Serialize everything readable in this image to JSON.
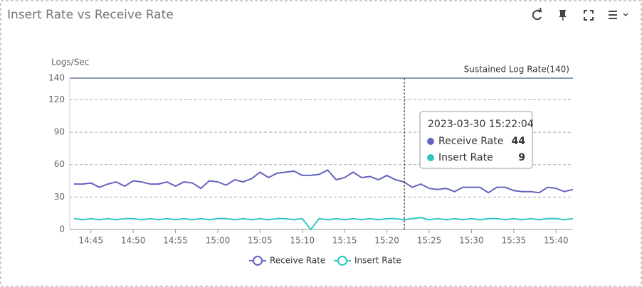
{
  "chart_data": {
    "type": "line",
    "title": "Insert Rate vs Receive Rate",
    "y_label": "Logs/Sec",
    "annotation": {
      "text": "Sustained Log Rate(140)",
      "value": 140
    },
    "x": [
      "14:43",
      "14:44",
      "14:45",
      "14:46",
      "14:47",
      "14:48",
      "14:49",
      "14:50",
      "14:51",
      "14:52",
      "14:53",
      "14:54",
      "14:55",
      "14:56",
      "14:57",
      "14:58",
      "14:59",
      "15:00",
      "15:01",
      "15:02",
      "15:03",
      "15:04",
      "15:05",
      "15:06",
      "15:07",
      "15:08",
      "15:09",
      "15:10",
      "15:11",
      "15:12",
      "15:13",
      "15:14",
      "15:15",
      "15:16",
      "15:17",
      "15:18",
      "15:19",
      "15:20",
      "15:21",
      "15:22",
      "15:23",
      "15:24",
      "15:25",
      "15:26",
      "15:27",
      "15:28",
      "15:29",
      "15:30",
      "15:31",
      "15:32",
      "15:33",
      "15:34",
      "15:35",
      "15:36",
      "15:37",
      "15:38",
      "15:39",
      "15:40",
      "15:41",
      "15:42"
    ],
    "series": [
      {
        "name": "Receive Rate",
        "color": "#6464bf",
        "values": [
          42,
          42,
          43,
          39,
          42,
          44,
          40,
          45,
          44,
          42,
          42,
          44,
          40,
          44,
          43,
          38,
          45,
          44,
          41,
          46,
          44,
          47,
          53,
          48,
          52,
          53,
          54,
          50,
          50,
          51,
          55,
          46,
          48,
          53,
          48,
          49,
          46,
          50,
          46,
          44,
          39,
          42,
          38,
          37,
          38,
          35,
          39,
          39,
          39,
          34,
          39,
          39,
          36,
          35,
          35,
          34,
          39,
          38,
          35,
          37
        ]
      },
      {
        "name": "Insert Rate",
        "color": "#2ec7c0",
        "values": [
          10,
          9,
          10,
          9,
          10,
          9,
          10,
          10,
          9,
          10,
          9,
          10,
          9,
          10,
          9,
          10,
          9,
          10,
          10,
          9,
          10,
          9,
          10,
          9,
          10,
          10,
          9,
          10,
          0,
          10,
          9,
          10,
          9,
          10,
          9,
          10,
          9,
          10,
          10,
          9,
          10,
          11,
          9,
          10,
          9,
          10,
          9,
          10,
          9,
          10,
          10,
          9,
          10,
          9,
          10,
          9,
          10,
          10,
          9,
          10
        ]
      }
    ],
    "xlim": [
      "14:42:30",
      "15:42:00"
    ],
    "xticks": [
      "14:45",
      "14:50",
      "14:55",
      "15:00",
      "15:05",
      "15:10",
      "15:15",
      "15:20",
      "15:25",
      "15:30",
      "15:35",
      "15:40"
    ],
    "ylim": [
      0,
      140
    ],
    "yticks": [
      0,
      30,
      60,
      90,
      120,
      140
    ],
    "grid": true,
    "legend": "bottom",
    "tooltip": {
      "title": "2023-03-30 15:22:04"
    }
  }
}
